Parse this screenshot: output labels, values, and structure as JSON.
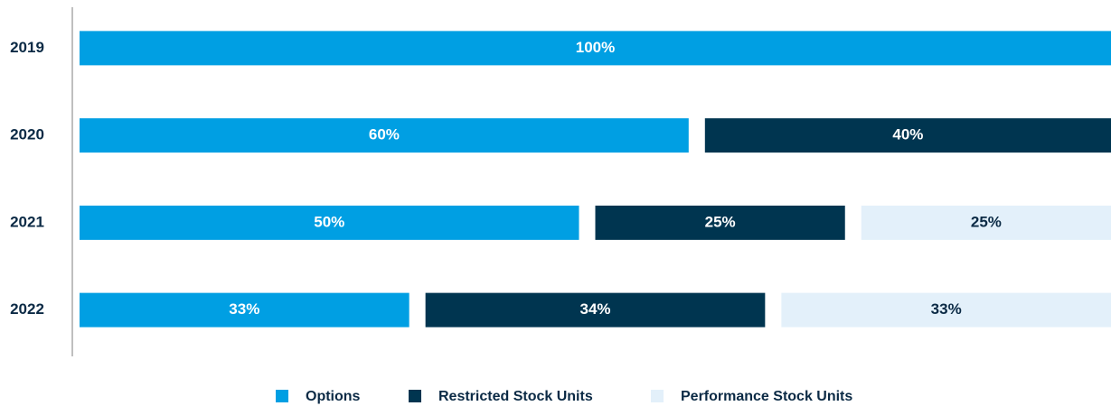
{
  "chart_data": {
    "type": "bar",
    "orientation": "horizontal",
    "stacked": true,
    "categories": [
      "2019",
      "2020",
      "2021",
      "2022"
    ],
    "series": [
      {
        "name": "Options",
        "color": "#009fe3",
        "values": [
          100,
          60,
          50,
          33
        ],
        "value_labels": [
          "100%",
          "60%",
          "50%",
          "33%"
        ]
      },
      {
        "name": "Restricted Stock Units",
        "color": "#003550",
        "values": [
          null,
          40,
          25,
          34
        ],
        "value_labels": [
          null,
          "40%",
          "25%",
          "34%"
        ]
      },
      {
        "name": "Performance Stock Units",
        "color": "#e3f0fa",
        "values": [
          null,
          null,
          25,
          33
        ],
        "value_labels": [
          null,
          null,
          "25%",
          "33%"
        ]
      }
    ]
  }
}
